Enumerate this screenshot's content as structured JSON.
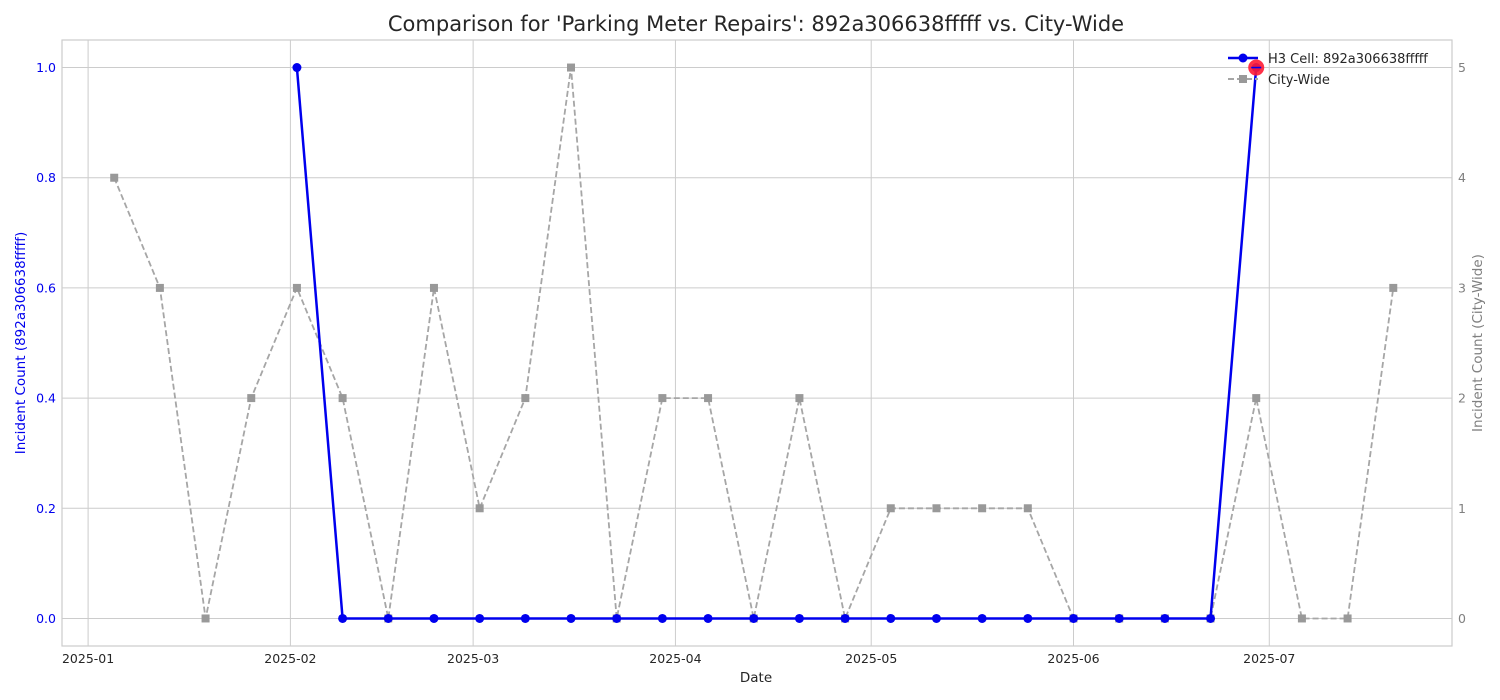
{
  "chart_data": {
    "type": "line",
    "title": "Comparison for 'Parking Meter Repairs': 892a306638fffff vs. City-Wide",
    "xlabel": "Date",
    "ylabel_left": "Incident Count (892a306638fffff)",
    "ylabel_right": "Incident Count (City-Wide)",
    "xlim": [
      "2024-12-28",
      "2025-07-29"
    ],
    "ylim_left": [
      -0.05,
      1.05
    ],
    "ylim_right": [
      -0.25,
      5.25
    ],
    "x_ticks": [
      "2025-01-01",
      "2025-02-01",
      "2025-03-01",
      "2025-04-01",
      "2025-05-01",
      "2025-06-01",
      "2025-07-01"
    ],
    "x_tick_labels": [
      "2025-01",
      "2025-02",
      "2025-03",
      "2025-04",
      "2025-05",
      "2025-06",
      "2025-07"
    ],
    "y_ticks_left": [
      0,
      0.2,
      0.4,
      0.6,
      0.8,
      1.0
    ],
    "y_tick_labels_left": [
      "0.0",
      "0.2",
      "0.4",
      "0.6",
      "0.8",
      "1.0"
    ],
    "y_ticks_right": [
      0,
      1,
      2,
      3,
      4,
      5
    ],
    "y_tick_labels_right": [
      "0",
      "1",
      "2",
      "3",
      "4",
      "5"
    ],
    "grid": true,
    "legend_position": "top-right",
    "series": [
      {
        "name": "H3 Cell: 892a306638fffff",
        "axis": "left",
        "color": "#0000ee",
        "style": "solid",
        "marker": "circle",
        "x": [
          "2025-02-02",
          "2025-02-09",
          "2025-02-16",
          "2025-02-23",
          "2025-03-02",
          "2025-03-09",
          "2025-03-16",
          "2025-03-23",
          "2025-03-30",
          "2025-04-06",
          "2025-04-13",
          "2025-04-20",
          "2025-04-27",
          "2025-05-04",
          "2025-05-11",
          "2025-05-18",
          "2025-05-25",
          "2025-06-01",
          "2025-06-08",
          "2025-06-15",
          "2025-06-22",
          "2025-06-29"
        ],
        "y": [
          1,
          0,
          0,
          0,
          0,
          0,
          0,
          0,
          0,
          0,
          0,
          0,
          0,
          0,
          0,
          0,
          0,
          0,
          0,
          0,
          0,
          1
        ]
      },
      {
        "name": "City-Wide",
        "axis": "right",
        "color": "#999999",
        "style": "dashed",
        "marker": "square",
        "x": [
          "2025-01-05",
          "2025-01-12",
          "2025-01-19",
          "2025-01-26",
          "2025-02-02",
          "2025-02-09",
          "2025-02-16",
          "2025-02-23",
          "2025-03-02",
          "2025-03-09",
          "2025-03-16",
          "2025-03-23",
          "2025-03-30",
          "2025-04-06",
          "2025-04-13",
          "2025-04-20",
          "2025-04-27",
          "2025-05-04",
          "2025-05-11",
          "2025-05-18",
          "2025-05-25",
          "2025-06-01",
          "2025-06-08",
          "2025-06-15",
          "2025-06-22",
          "2025-06-29",
          "2025-07-06",
          "2025-07-13",
          "2025-07-20"
        ],
        "y": [
          4,
          3,
          0,
          2,
          3,
          2,
          0,
          3,
          1,
          2,
          5,
          0,
          2,
          2,
          0,
          2,
          0,
          1,
          1,
          1,
          1,
          0,
          0,
          0,
          0,
          2,
          0,
          0,
          3
        ]
      }
    ],
    "highlight": {
      "series": "H3 Cell: 892a306638fffff",
      "x": "2025-06-29",
      "y": 1,
      "color": "#ff1a33"
    }
  }
}
